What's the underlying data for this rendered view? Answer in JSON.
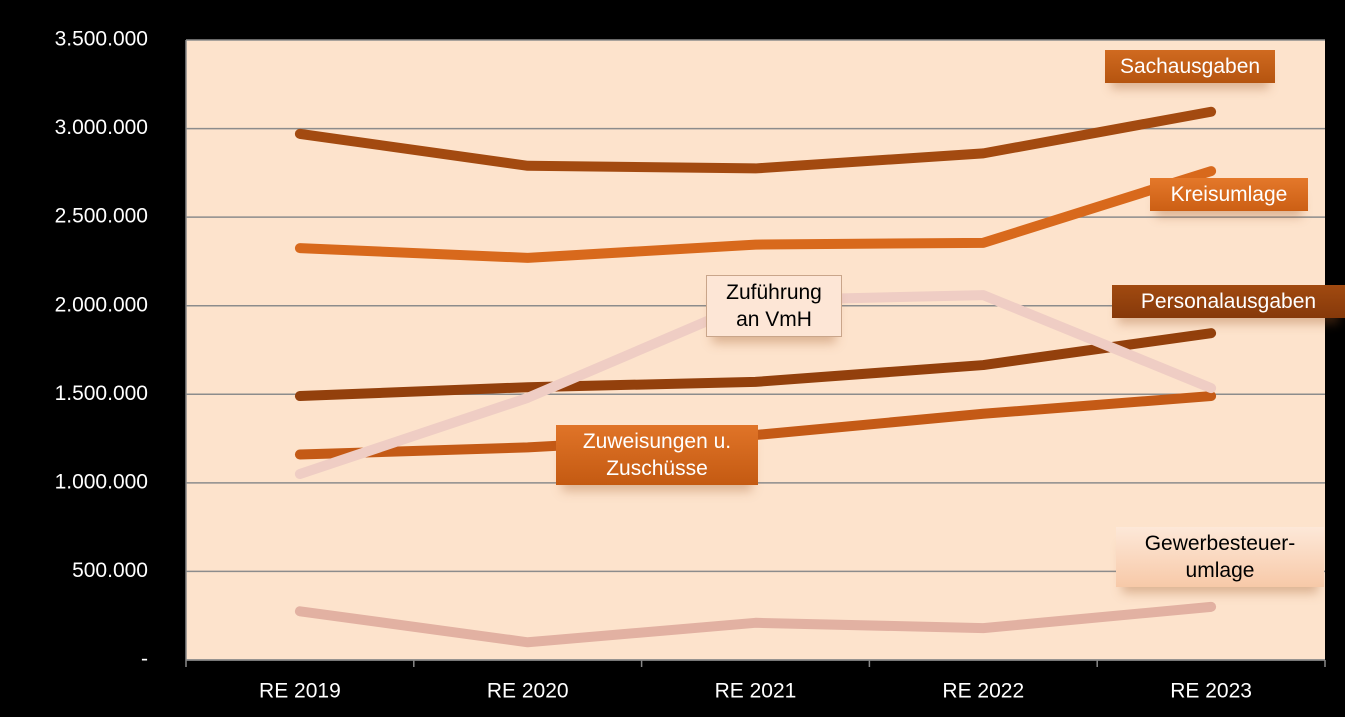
{
  "chart_data": {
    "type": "line",
    "categories": [
      "RE 2019",
      "RE 2020",
      "RE 2021",
      "RE 2022",
      "RE 2023"
    ],
    "series": [
      {
        "name": "Sachausgaben",
        "color": "#a34a10",
        "values": [
          2970000,
          2790000,
          2775000,
          2860000,
          3095000
        ]
      },
      {
        "name": "Kreisumlage",
        "color": "#d8691c",
        "values": [
          2325000,
          2270000,
          2345000,
          2355000,
          2760000
        ]
      },
      {
        "name": "Personalausgaben",
        "color": "#93400c",
        "values": [
          1490000,
          1540000,
          1570000,
          1665000,
          1845000
        ]
      },
      {
        "name": "Zuweisungen u. Zuschüsse",
        "color": "#c45a16",
        "values": [
          1160000,
          1200000,
          1270000,
          1390000,
          1490000
        ]
      },
      {
        "name": "Zuführung an VmH",
        "color": "#efcdc4",
        "values": [
          1050000,
          1480000,
          2030000,
          2060000,
          1535000
        ]
      },
      {
        "name": "Gewerbesteuer-umlage",
        "color": "#e2b1a2",
        "values": [
          275000,
          100000,
          210000,
          180000,
          300000
        ]
      }
    ],
    "ylim": [
      0,
      3500000
    ],
    "yticks": [
      {
        "value": 0,
        "label": "-"
      },
      {
        "value": 500000,
        "label": "500.000"
      },
      {
        "value": 1000000,
        "label": "1.000.000"
      },
      {
        "value": 1500000,
        "label": "1.500.000"
      },
      {
        "value": 2000000,
        "label": "2.000.000"
      },
      {
        "value": 2500000,
        "label": "2.500.000"
      },
      {
        "value": 3000000,
        "label": "3.000.000"
      },
      {
        "value": 3500000,
        "label": "3.500.000"
      }
    ],
    "grid": true
  }
}
